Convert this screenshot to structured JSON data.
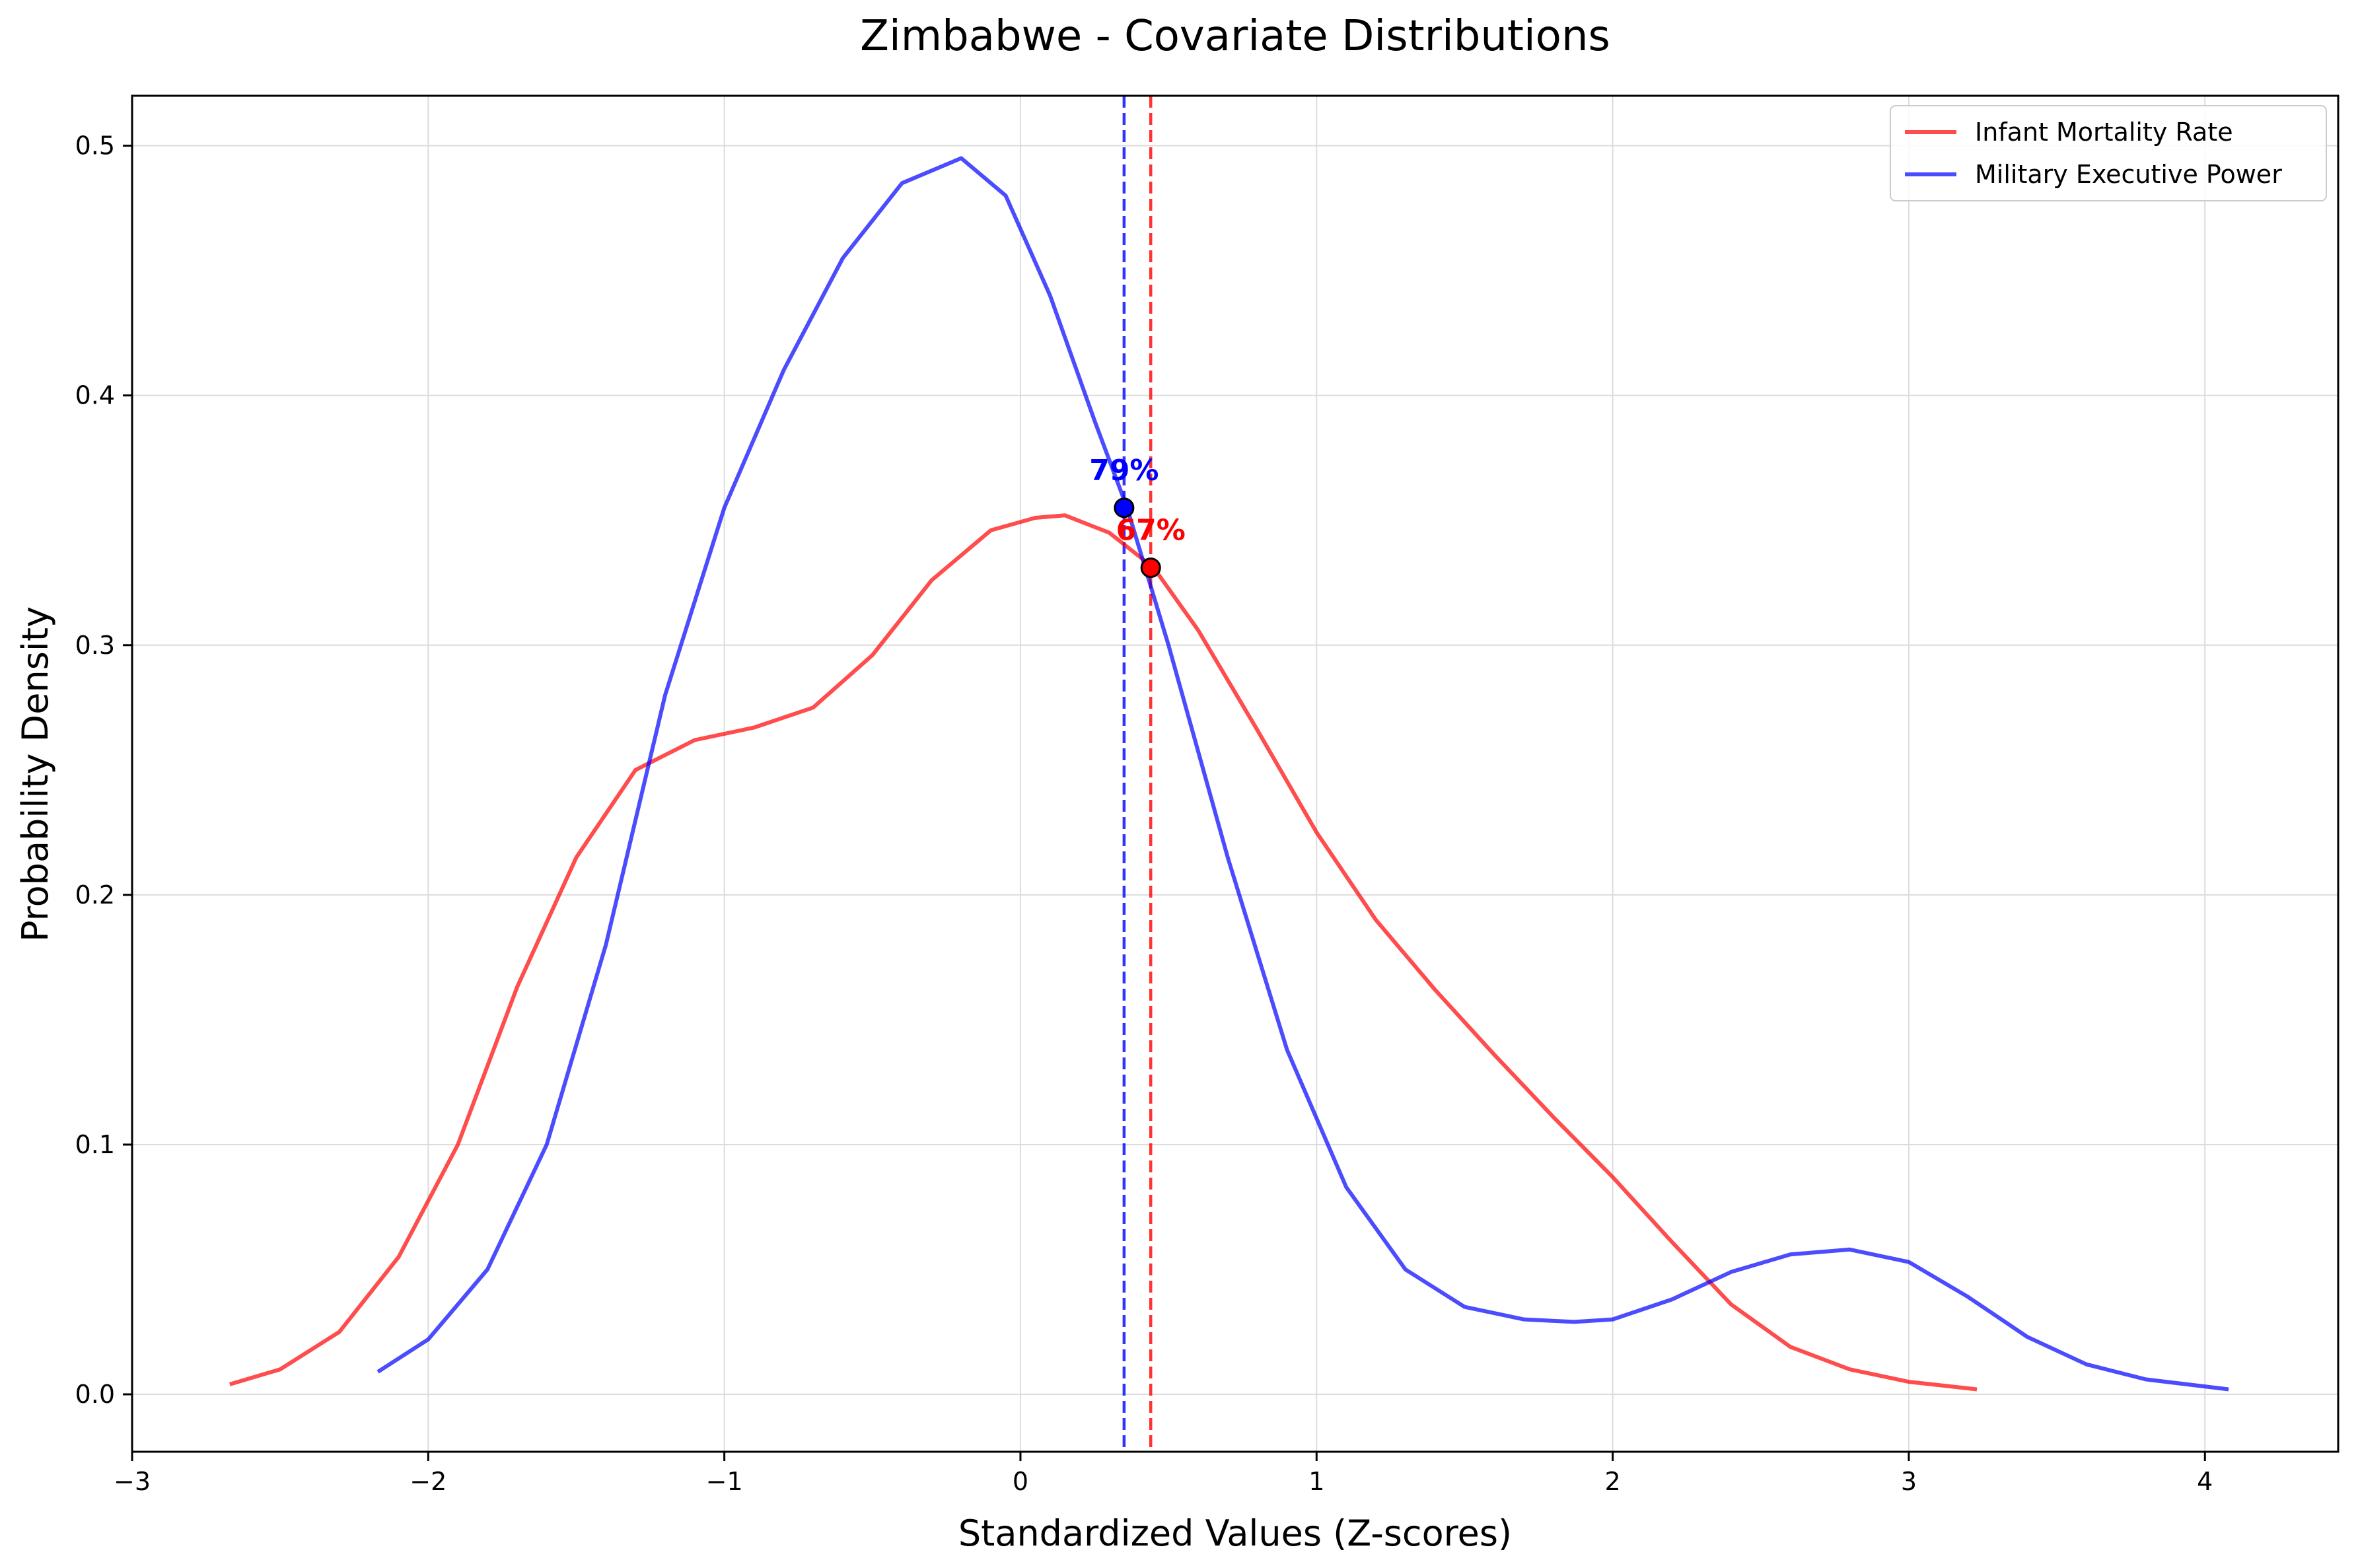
{
  "chart_data": {
    "type": "line",
    "title": "Zimbabwe - Covariate Distributions",
    "xlabel": "Standardized Values (Z-scores)",
    "ylabel": "Probability Density",
    "xlim": [
      -3,
      4.45
    ],
    "ylim": [
      -0.023,
      0.52
    ],
    "xticks": [
      -3,
      -2,
      -1,
      0,
      1,
      2,
      3,
      4
    ],
    "xtick_labels": [
      "−3",
      "−2",
      "−1",
      "0",
      "1",
      "2",
      "3",
      "4"
    ],
    "yticks": [
      0.0,
      0.1,
      0.2,
      0.3,
      0.4,
      0.5
    ],
    "ytick_labels": [
      "0.0",
      "0.1",
      "0.2",
      "0.3",
      "0.4",
      "0.5"
    ],
    "grid": true,
    "legend_position": "top-right",
    "series": [
      {
        "name": "Infant Mortality Rate",
        "color": "#ff0000",
        "x": [
          -2.67,
          -2.5,
          -2.3,
          -2.1,
          -1.9,
          -1.7,
          -1.5,
          -1.3,
          -1.1,
          -0.9,
          -0.7,
          -0.5,
          -0.3,
          -0.1,
          0.05,
          0.15,
          0.3,
          0.45,
          0.6,
          0.8,
          1.0,
          1.2,
          1.4,
          1.6,
          1.8,
          2.0,
          2.2,
          2.4,
          2.6,
          2.8,
          3.0,
          3.23
        ],
        "y": [
          0.004,
          0.01,
          0.025,
          0.055,
          0.1,
          0.163,
          0.215,
          0.25,
          0.262,
          0.267,
          0.275,
          0.296,
          0.326,
          0.346,
          0.351,
          0.352,
          0.345,
          0.331,
          0.306,
          0.266,
          0.225,
          0.19,
          0.162,
          0.136,
          0.111,
          0.087,
          0.061,
          0.036,
          0.019,
          0.01,
          0.005,
          0.002
        ],
        "marker": {
          "x": 0.44,
          "y": 0.331,
          "label": "67%"
        },
        "vline": 0.44
      },
      {
        "name": "Military Executive Power",
        "color": "#0000ff",
        "x": [
          -2.17,
          -2.0,
          -1.8,
          -1.6,
          -1.4,
          -1.2,
          -1.0,
          -0.8,
          -0.6,
          -0.4,
          -0.2,
          -0.05,
          0.1,
          0.25,
          0.36,
          0.5,
          0.7,
          0.9,
          1.1,
          1.3,
          1.5,
          1.7,
          1.87,
          2.0,
          2.2,
          2.4,
          2.6,
          2.8,
          3.0,
          3.2,
          3.4,
          3.6,
          3.8,
          4.08
        ],
        "y": [
          0.009,
          0.022,
          0.05,
          0.1,
          0.18,
          0.28,
          0.355,
          0.41,
          0.455,
          0.485,
          0.495,
          0.48,
          0.44,
          0.39,
          0.355,
          0.3,
          0.215,
          0.138,
          0.083,
          0.05,
          0.035,
          0.03,
          0.029,
          0.03,
          0.038,
          0.049,
          0.056,
          0.058,
          0.053,
          0.039,
          0.023,
          0.012,
          0.006,
          0.002
        ],
        "marker": {
          "x": 0.35,
          "y": 0.355,
          "label": "79%"
        },
        "vline": 0.35
      }
    ]
  }
}
